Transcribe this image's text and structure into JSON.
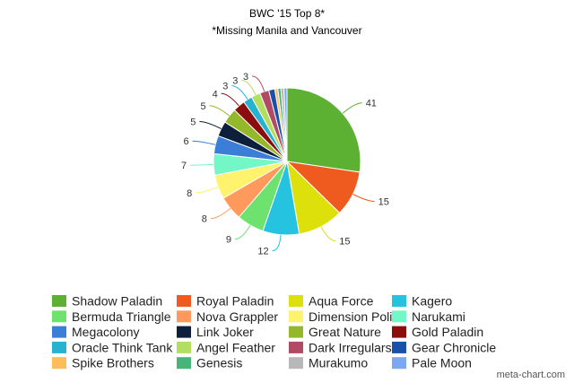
{
  "chart_data": {
    "type": "pie",
    "title": "BWC '15 Top 8*",
    "subtitle": "*Missing Manila and Vancouver",
    "legend_position": "bottom",
    "categories": [
      "Shadow Paladin",
      "Royal Paladin",
      "Aqua Force",
      "Kagero",
      "Bermuda Triangle",
      "Nova Grappler",
      "Dimension Police",
      "Narukami",
      "Megacolony",
      "Link Joker",
      "Great Nature",
      "Gold Paladin",
      "Oracle Think Tank",
      "Angel Feather",
      "Dark Irregulars",
      "Gear Chronicle",
      "Spike Brothers",
      "Genesis",
      "Murakumo",
      "Pale Moon"
    ],
    "values": [
      41,
      15,
      15,
      12,
      9,
      8,
      8,
      7,
      6,
      5,
      5,
      4,
      3,
      3,
      3,
      2,
      1,
      1,
      1,
      1
    ],
    "labels": [
      "41",
      "15",
      "15",
      "12",
      "9",
      "8",
      "8",
      "7",
      "6",
      "5",
      "5",
      "4",
      "3",
      "3",
      "3",
      "",
      "",
      "",
      "",
      ""
    ],
    "colors": [
      "#5db132",
      "#ef5a1e",
      "#dde00a",
      "#25c3e0",
      "#6ee26e",
      "#ff9a5c",
      "#fff36e",
      "#74f7c7",
      "#3a7ed8",
      "#0d1f3a",
      "#93b82a",
      "#8b0d0d",
      "#27b2cf",
      "#b3de5f",
      "#b14a64",
      "#1951a8",
      "#ffbc5b",
      "#47b47a",
      "#b8b8b8",
      "#7ba7f5"
    ]
  },
  "credit": "meta-chart.com"
}
